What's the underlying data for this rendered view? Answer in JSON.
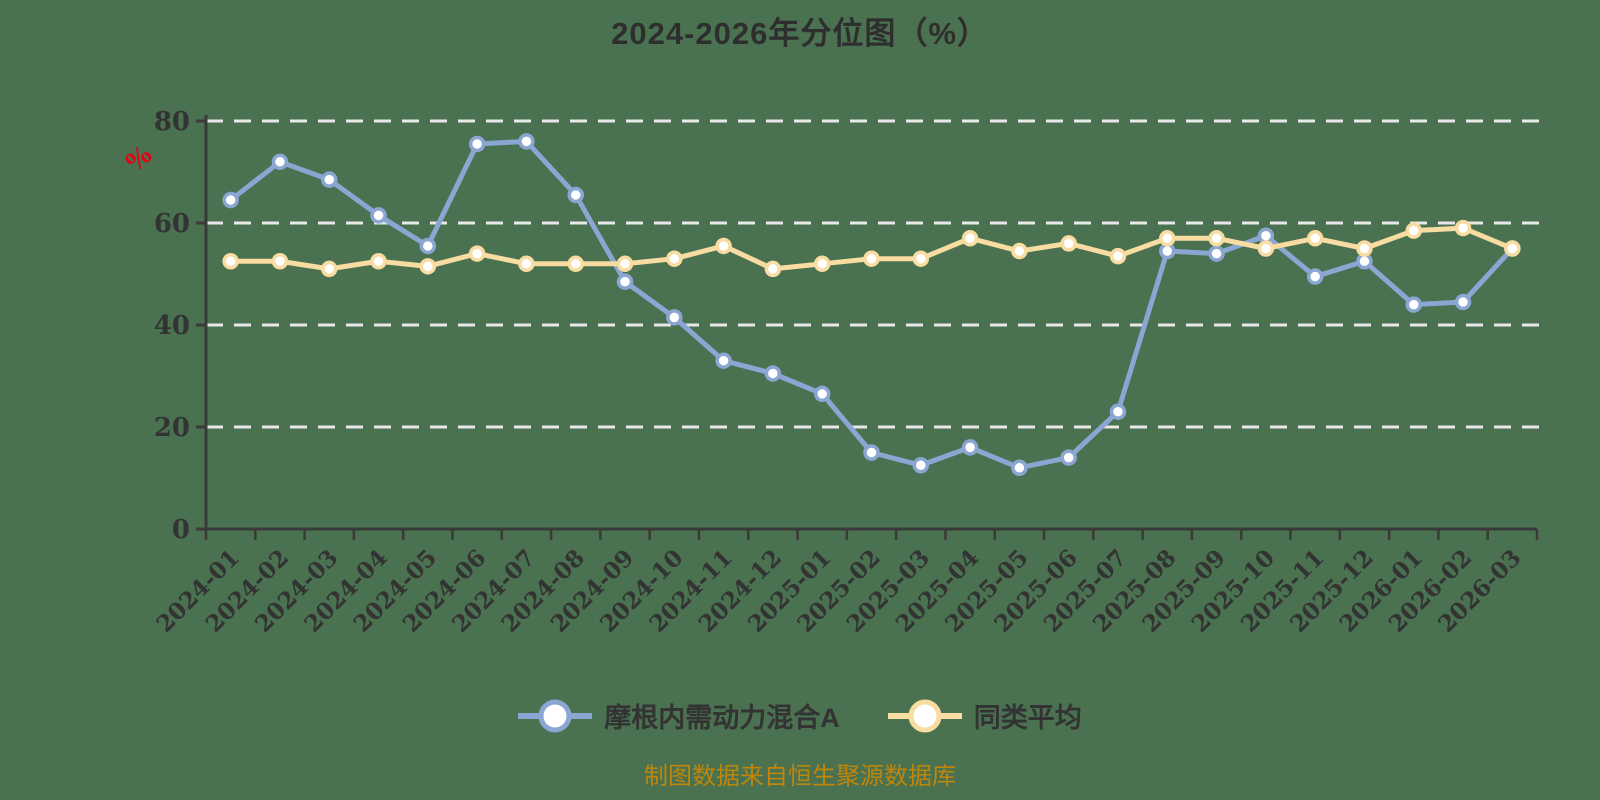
{
  "title": "2024-2026年分位图（%）",
  "y_axis_unit": "%",
  "caption": "制图数据来自恒生聚源数据库",
  "colors": {
    "background": "#4A7150",
    "axis": "#3A3A3A",
    "gridline": "#E8E8E8",
    "tick_label": "#333333",
    "title": "#2E2E2E",
    "caption": "#BE860B",
    "y_unit": "#E60012",
    "series_fund": "#8BA6D2",
    "series_avg": "#F8DCA2",
    "marker_fill": "#FFFFFF"
  },
  "chart_data": {
    "type": "line",
    "title": "2024-2026年分位图（%）",
    "xlabel": "",
    "ylabel": "%",
    "ylim": [
      0,
      80
    ],
    "yticks": [
      0,
      20,
      40,
      60,
      80
    ],
    "grid": "horizontal-dashed",
    "legend_position": "bottom",
    "categories": [
      "2024-01",
      "2024-02",
      "2024-03",
      "2024-04",
      "2024-05",
      "2024-06",
      "2024-07",
      "2024-08",
      "2024-09",
      "2024-10",
      "2024-11",
      "2024-12",
      "2025-01",
      "2025-02",
      "2025-03",
      "2025-04",
      "2025-05",
      "2025-06",
      "2025-07",
      "2025-08",
      "2025-09",
      "2025-10",
      "2025-11",
      "2025-12",
      "2026-01",
      "2026-02",
      "2026-03"
    ],
    "series": [
      {
        "name": "摩根内需动力混合A",
        "color": "#8BA6D2",
        "values": [
          64.5,
          72,
          68.5,
          61.5,
          55.5,
          75.5,
          76,
          65.5,
          48.5,
          41.5,
          33,
          30.5,
          26.5,
          15,
          12.5,
          16,
          12,
          14,
          23,
          54.5,
          54,
          57.5,
          49.5,
          52.5,
          44,
          44.5,
          55
        ]
      },
      {
        "name": "同类平均",
        "color": "#F8DCA2",
        "values": [
          52.5,
          52.5,
          51,
          52.5,
          51.5,
          54,
          52,
          52,
          52,
          53,
          55.5,
          51,
          52,
          53,
          53,
          57,
          54.5,
          56,
          53.5,
          57,
          57,
          55,
          57,
          55,
          58.5,
          59,
          55
        ]
      }
    ]
  }
}
